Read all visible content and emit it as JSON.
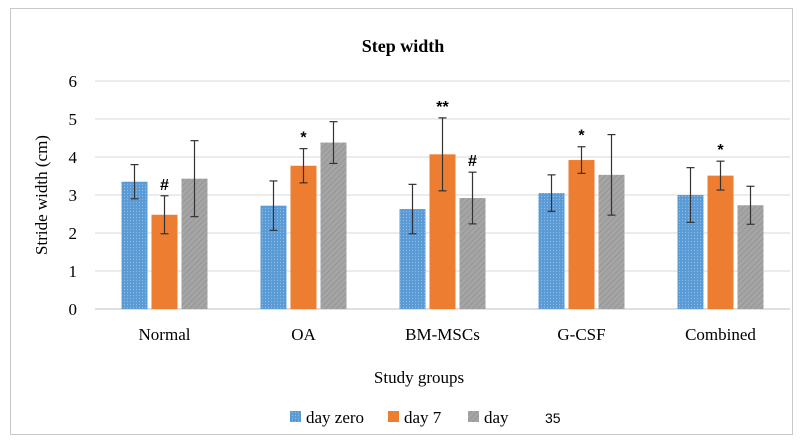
{
  "chart_data": {
    "type": "bar",
    "title": "Step width",
    "xlabel": "Study groups",
    "ylabel": "Stride width (cm)",
    "ylim": [
      0,
      6
    ],
    "yticks": [
      "0",
      "1",
      "2",
      "3",
      "4",
      "5",
      "6"
    ],
    "grid": true,
    "legend_position": "bottom",
    "categories": [
      "Normal",
      "OA",
      "BM-MSCs",
      "G-CSF",
      "Combined"
    ],
    "series": [
      {
        "name": "day zero",
        "color": "#5b9bd5",
        "values": [
          3.35,
          2.72,
          2.63,
          3.05,
          3.0
        ],
        "errors": [
          0.45,
          0.65,
          0.65,
          0.48,
          0.72
        ]
      },
      {
        "name": "day 7",
        "color": "#ed7d31",
        "values": [
          2.48,
          3.77,
          4.07,
          3.92,
          3.51
        ],
        "errors": [
          0.5,
          0.45,
          0.96,
          0.35,
          0.38
        ]
      },
      {
        "name": "day",
        "color": "#a5a5a5",
        "values": [
          3.43,
          4.38,
          2.92,
          3.53,
          2.73
        ],
        "errors": [
          1.0,
          0.55,
          0.68,
          1.06,
          0.5
        ]
      }
    ],
    "annotations": [
      {
        "category": "Normal",
        "series": "day 7",
        "text": "#"
      },
      {
        "category": "OA",
        "series": "day 7",
        "text": "*"
      },
      {
        "category": "BM-MSCs",
        "series": "day 7",
        "text": "**"
      },
      {
        "category": "BM-MSCs",
        "series": "day",
        "text": "#"
      },
      {
        "category": "G-CSF",
        "series": "day 7",
        "text": "*"
      },
      {
        "category": "Combined",
        "series": "day 7",
        "text": "*"
      }
    ],
    "legend_extra": "35"
  }
}
